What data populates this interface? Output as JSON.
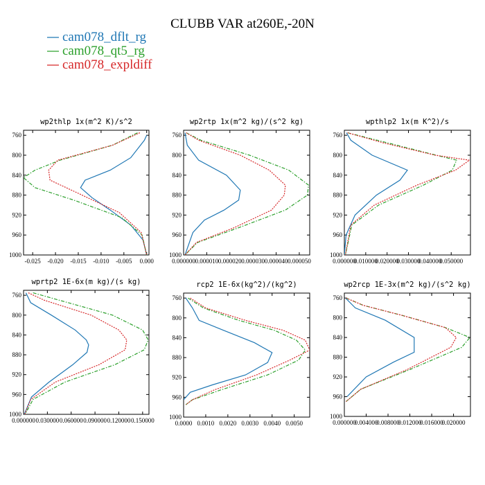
{
  "figure": {
    "title": "CLUBB VAR at260E,-20N"
  },
  "legend": [
    {
      "label": "cam078_dflt_rg",
      "color": "#1f77b4",
      "dash": "solid"
    },
    {
      "label": "cam078_qt5_rg",
      "color": "#2ca02c",
      "dash": "dashdot"
    },
    {
      "label": "cam078_expldiff",
      "color": "#d62728",
      "dash": "dotted"
    }
  ],
  "chart_data": [
    {
      "type": "line",
      "title": "wp2thlp   1x(m^2 K)/s^2",
      "xlim": [
        -0.027,
        0.0005
      ],
      "ylim": [
        1000,
        750
      ],
      "xticks": [
        -0.025,
        -0.02,
        -0.015,
        -0.01,
        -0.005,
        0.0
      ],
      "xtick_labels": [
        "-0.025",
        "-0.020",
        "-0.015",
        "-0.010",
        "-0.005",
        "0.000"
      ],
      "yticks": [
        760,
        800,
        840,
        880,
        920,
        960,
        1000
      ],
      "series": [
        {
          "name": "cam078_dflt_rg",
          "x": [
            0.0,
            -0.0005,
            -0.0035,
            -0.008,
            -0.0135,
            -0.0145,
            -0.012,
            -0.008,
            -0.0035,
            -0.0008,
            0.0
          ],
          "y": [
            760,
            770,
            805,
            830,
            850,
            865,
            885,
            910,
            940,
            970,
            1000
          ]
        },
        {
          "name": "cam078_qt5_rg",
          "x": [
            -0.002,
            -0.0075,
            -0.019,
            -0.0245,
            -0.027,
            -0.0245,
            -0.016,
            -0.0055,
            -0.001,
            0.0
          ],
          "y": [
            755,
            780,
            810,
            830,
            845,
            865,
            890,
            925,
            960,
            1000
          ]
        },
        {
          "name": "cam078_expldiff",
          "x": [
            -0.0015,
            -0.0075,
            -0.0195,
            -0.0215,
            -0.0212,
            -0.0165,
            -0.006,
            -0.0012,
            0.0
          ],
          "y": [
            755,
            780,
            810,
            830,
            850,
            870,
            915,
            955,
            1000
          ]
        }
      ]
    },
    {
      "type": "line",
      "title": "wp2rtp   1x(m^2 kg)/(s^2 kg)",
      "xlim": [
        0,
        5.45e-05
      ],
      "ylim": [
        1000,
        750
      ],
      "xticks": [
        0,
        1e-05,
        2e-05,
        3e-05,
        4e-05,
        5e-05
      ],
      "xtick_labels": [
        "0.000000",
        "0.000010",
        "0.000020",
        "0.000030",
        "0.000040",
        "0.000050"
      ],
      "yticks": [
        760,
        800,
        840,
        880,
        920,
        960,
        1000
      ],
      "series": [
        {
          "name": "cam078_dflt_rg",
          "x": [
            6e-07,
            1.6e-06,
            6.5e-06,
            1.85e-05,
            2.45e-05,
            2.38e-05,
            1.75e-05,
            9e-06,
            4e-06,
            6e-07
          ],
          "y": [
            755,
            780,
            810,
            840,
            870,
            890,
            910,
            930,
            955,
            1000
          ]
        },
        {
          "name": "cam078_qt5_rg",
          "x": [
            1.1e-06,
            7.5e-06,
            2.85e-05,
            4.55e-05,
            5.4e-05,
            5.35e-05,
            4.4e-05,
            2.4e-05,
            6e-06,
            6e-07
          ],
          "y": [
            755,
            770,
            800,
            830,
            860,
            880,
            910,
            945,
            975,
            1000
          ]
        },
        {
          "name": "cam078_expldiff",
          "x": [
            1.1e-06,
            6.5e-06,
            2.45e-05,
            3.7e-05,
            4.4e-05,
            4.35e-05,
            3.8e-05,
            2.2e-05,
            5.5e-06,
            6e-07
          ],
          "y": [
            755,
            770,
            800,
            830,
            860,
            880,
            910,
            945,
            975,
            1000
          ]
        }
      ]
    },
    {
      "type": "line",
      "title": "wpthlp2   1x(m K^2)/s",
      "xlim": [
        0,
        0.059
      ],
      "ylim": [
        1000,
        750
      ],
      "xticks": [
        0,
        0.01,
        0.02,
        0.03,
        0.04,
        0.05
      ],
      "xtick_labels": [
        "0.000000",
        "0.010000",
        "0.020000",
        "0.030000",
        "0.040000",
        "0.050000"
      ],
      "yticks": [
        760,
        800,
        840,
        880,
        920,
        960,
        1000
      ],
      "series": [
        {
          "name": "cam078_dflt_rg",
          "x": [
            0.001,
            0.003,
            0.013,
            0.0295,
            0.026,
            0.015,
            0.005,
            0.0008,
            0.0
          ],
          "y": [
            755,
            770,
            800,
            830,
            850,
            880,
            920,
            960,
            1000
          ]
        },
        {
          "name": "cam078_qt5_rg",
          "x": [
            0.0015,
            0.02,
            0.043,
            0.0525,
            0.0505,
            0.037,
            0.016,
            0.0035,
            0.0005
          ],
          "y": [
            755,
            775,
            800,
            810,
            830,
            860,
            900,
            940,
            1000
          ]
        },
        {
          "name": "cam078_expldiff",
          "x": [
            0.0015,
            0.018,
            0.0425,
            0.0585,
            0.052,
            0.034,
            0.014,
            0.003,
            0.0005
          ],
          "y": [
            755,
            775,
            800,
            810,
            830,
            860,
            900,
            940,
            1000
          ]
        }
      ]
    },
    {
      "type": "line",
      "title": "wprtp2   1E-6x(m kg)/(s kg)",
      "xlim": [
        0,
        0.158
      ],
      "ylim": [
        1000,
        750
      ],
      "xticks": [
        0,
        0.03,
        0.06,
        0.09,
        0.12,
        0.15
      ],
      "xtick_labels": [
        "0.000000",
        "0.030000",
        "0.060000",
        "0.090000",
        "0.120000",
        "0.150000"
      ],
      "yticks": [
        760,
        800,
        840,
        880,
        920,
        960,
        1000
      ],
      "series": [
        {
          "name": "cam078_dflt_rg",
          "x": [
            0.003,
            0.009,
            0.035,
            0.065,
            0.079,
            0.082,
            0.08,
            0.062,
            0.032,
            0.01,
            0.001
          ],
          "y": [
            755,
            775,
            800,
            830,
            850,
            860,
            875,
            900,
            935,
            965,
            1000
          ]
        },
        {
          "name": "cam078_qt5_rg",
          "x": [
            0.012,
            0.045,
            0.112,
            0.15,
            0.157,
            0.152,
            0.115,
            0.052,
            0.012,
            0.002
          ],
          "y": [
            755,
            770,
            800,
            830,
            850,
            870,
            900,
            935,
            970,
            1000
          ]
        },
        {
          "name": "cam078_expldiff",
          "x": [
            0.006,
            0.026,
            0.085,
            0.12,
            0.13,
            0.128,
            0.095,
            0.04,
            0.009,
            0.0015
          ],
          "y": [
            755,
            770,
            800,
            830,
            850,
            870,
            900,
            935,
            970,
            1000
          ]
        }
      ]
    },
    {
      "type": "line",
      "title": "rcp2   1E-6x(kg^2)/(kg^2)",
      "xlim": [
        0,
        0.0057
      ],
      "ylim": [
        1000,
        750
      ],
      "xticks": [
        0,
        0.001,
        0.002,
        0.003,
        0.004,
        0.005
      ],
      "xtick_labels": [
        "0.0000",
        "0.0010",
        "0.0020",
        "0.0030",
        "0.0040",
        "0.0050"
      ],
      "yticks": [
        760,
        800,
        840,
        880,
        920,
        960,
        1000
      ],
      "series": [
        {
          "name": "cam078_dflt_rg",
          "x": [
            0.0001,
            0.0004,
            0.0007,
            0.0018,
            0.0032,
            0.004,
            0.0038,
            0.0028,
            0.0013,
            0.0003,
            0.0
          ],
          "y": [
            760,
            780,
            805,
            825,
            850,
            870,
            890,
            915,
            935,
            950,
            965
          ]
        },
        {
          "name": "cam078_qt5_rg",
          "x": [
            0.0002,
            0.0009,
            0.0025,
            0.0041,
            0.0051,
            0.0055,
            0.0052,
            0.0038,
            0.0017,
            0.0004,
            0.0001
          ],
          "y": [
            760,
            780,
            805,
            825,
            845,
            865,
            885,
            915,
            945,
            965,
            975
          ]
        },
        {
          "name": "cam078_expldiff",
          "x": [
            0.0003,
            0.001,
            0.0028,
            0.0045,
            0.0055,
            0.0057,
            0.0048,
            0.0033,
            0.0014,
            0.0004,
            0.0001
          ],
          "y": [
            760,
            780,
            805,
            825,
            845,
            865,
            885,
            915,
            945,
            965,
            975
          ]
        }
      ]
    },
    {
      "type": "line",
      "title": "wp2rcp   1E-3x(m^2 kg)/(s^2 kg)",
      "xlim": [
        0,
        0.0231
      ],
      "ylim": [
        1000,
        750
      ],
      "xticks": [
        0,
        0.004,
        0.008,
        0.012,
        0.016,
        0.02
      ],
      "xtick_labels": [
        "0.000000",
        "0.004000",
        "0.008000",
        "0.012000",
        "0.016000",
        "0.020000"
      ],
      "yticks": [
        760,
        800,
        840,
        880,
        920,
        960,
        1000
      ],
      "series": [
        {
          "name": "cam078_dflt_rg",
          "x": [
            0.0002,
            0.002,
            0.0075,
            0.0128,
            0.0128,
            0.009,
            0.004,
            0.0005
          ],
          "y": [
            760,
            780,
            805,
            840,
            870,
            890,
            920,
            960
          ]
        },
        {
          "name": "cam078_qt5_rg",
          "x": [
            0.0003,
            0.0035,
            0.0105,
            0.0185,
            0.023,
            0.0215,
            0.012,
            0.003,
            0.0003
          ],
          "y": [
            760,
            775,
            795,
            820,
            840,
            860,
            905,
            945,
            970
          ]
        },
        {
          "name": "cam078_expldiff",
          "x": [
            0.0003,
            0.0035,
            0.0105,
            0.0185,
            0.0205,
            0.0195,
            0.0115,
            0.003,
            0.0003
          ],
          "y": [
            760,
            775,
            795,
            820,
            840,
            860,
            905,
            945,
            970
          ]
        }
      ]
    }
  ]
}
